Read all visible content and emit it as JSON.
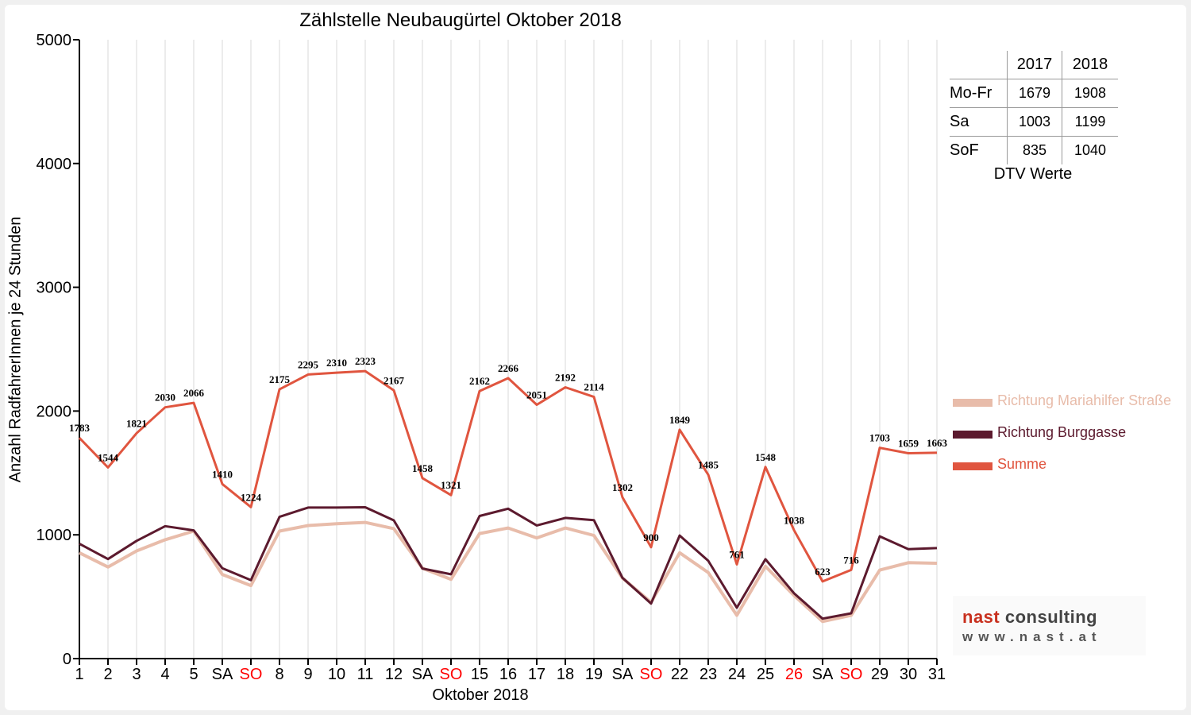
{
  "chart_data": {
    "type": "line",
    "title": "Zählstelle Neubaugürtel Oktober 2018",
    "xlabel": "Oktober 2018",
    "ylabel": "Anzahl RadfahrerInnen je 24 Stunden",
    "ylim": [
      0,
      5000
    ],
    "yticks": [
      "0",
      "1000",
      "2000",
      "3000",
      "4000",
      "5000"
    ],
    "grid": "vertical",
    "legend_position": "right",
    "categories": [
      "1",
      "2",
      "3",
      "4",
      "5",
      "SA",
      "SO",
      "8",
      "9",
      "10",
      "11",
      "12",
      "SA",
      "SO",
      "15",
      "16",
      "17",
      "18",
      "19",
      "SA",
      "SO",
      "22",
      "23",
      "24",
      "25",
      "26",
      "SA",
      "SO",
      "29",
      "30",
      "31"
    ],
    "red_categories": [
      6,
      13,
      20,
      25,
      27
    ],
    "series": [
      {
        "name": "Richtung Mariahilfer Straße",
        "color": "#e8bcaa",
        "values": [
          855,
          740,
          870,
          960,
          1030,
          680,
          590,
          1030,
          1075,
          1090,
          1100,
          1050,
          730,
          640,
          1010,
          1055,
          975,
          1055,
          995,
          650,
          455,
          855,
          695,
          350,
          745,
          510,
          300,
          350,
          715,
          775,
          770
        ]
      },
      {
        "name": "Richtung Burggasse",
        "color": "#5c1a2e",
        "values": [
          928,
          804,
          951,
          1070,
          1036,
          730,
          634,
          1145,
          1220,
          1220,
          1223,
          1117,
          728,
          681,
          1152,
          1211,
          1076,
          1137,
          1119,
          652,
          445,
          994,
          790,
          411,
          803,
          528,
          323,
          366,
          988,
          884,
          893
        ]
      },
      {
        "name": "Summe",
        "color": "#e0553f",
        "values": [
          1783,
          1544,
          1821,
          2030,
          2066,
          1410,
          1224,
          2175,
          2295,
          2310,
          2323,
          2167,
          1458,
          1321,
          2162,
          2266,
          2051,
          2192,
          2114,
          1302,
          900,
          1849,
          1485,
          761,
          1548,
          1038,
          623,
          716,
          1703,
          1659,
          1663
        ]
      }
    ],
    "data_labels": [
      "1783",
      "1544",
      "1821",
      "2030",
      "2066",
      "1410",
      "1224",
      "2175",
      "2295",
      "2310",
      "2323",
      "2167",
      "1458",
      "1321",
      "2162",
      "2266",
      "2051",
      "2192",
      "2114",
      "1302",
      "900",
      "1849",
      "1485",
      "761",
      "1548",
      "1038",
      "623",
      "716",
      "1703",
      "1659",
      "1663"
    ]
  },
  "dtv_table": {
    "columns": [
      "",
      "2017",
      "2018"
    ],
    "rows": [
      {
        "label": "Mo-Fr",
        "v2017": "1679",
        "v2018": "1908"
      },
      {
        "label": "Sa",
        "v2017": "1003",
        "v2018": "1199"
      },
      {
        "label": "SoF",
        "v2017": "835",
        "v2018": "1040"
      }
    ],
    "caption": "DTV Werte"
  },
  "logo": {
    "line1_a": "nast",
    "line1_b": " consulting",
    "line2": "www.nast.at",
    "color_a": "#c8301e",
    "color_b": "#444444"
  }
}
